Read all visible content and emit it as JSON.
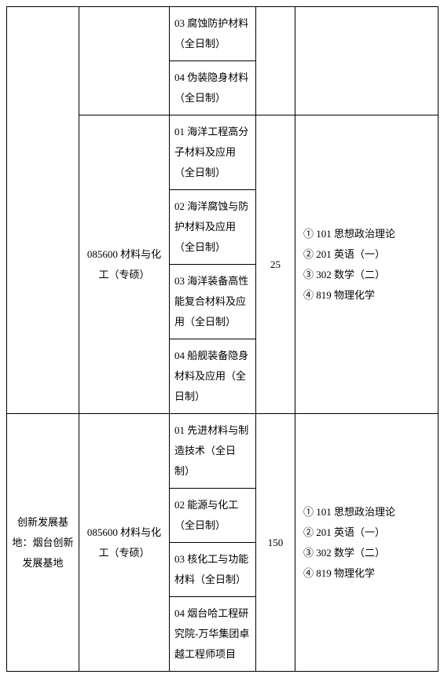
{
  "rows": [
    {
      "col0": "",
      "col1": "",
      "direction": "03 腐蚀防护材料（全日制）",
      "quota": "",
      "exam": ""
    },
    {
      "direction": "04 伪装隐身材料（全日制）"
    },
    {
      "col1": "085600 材料与化工（专硕）",
      "direction": "01 海洋工程高分子材料及应用（全日制）",
      "quota": "25",
      "exam": "① 101 思想政治理论\n② 201 英语（一）\n③ 302 数学（二）\n④ 819 物理化学"
    },
    {
      "direction": "02 海洋腐蚀与防护材料及应用（全日制）"
    },
    {
      "direction": "03 海洋装备高性能复合材料及应用（全日制）"
    },
    {
      "direction": "04 船舰装备隐身材料及应用（全日制）"
    },
    {
      "col0": "创新发展基地：烟台创新发展基地",
      "col1": "085600 材料与化工（专硕）",
      "direction": "01 先进材料与制造技术（全日制）",
      "quota": "150",
      "exam": "① 101 思想政治理论\n② 201 英语（一）\n③ 302 数学（二）\n④ 819 物理化学"
    },
    {
      "direction": "02 能源与化工（全日制）"
    },
    {
      "direction": "03 核化工与功能材料（全日制）"
    },
    {
      "direction": "04 烟台哈工程研究院-万华集团卓越工程师项目"
    }
  ]
}
